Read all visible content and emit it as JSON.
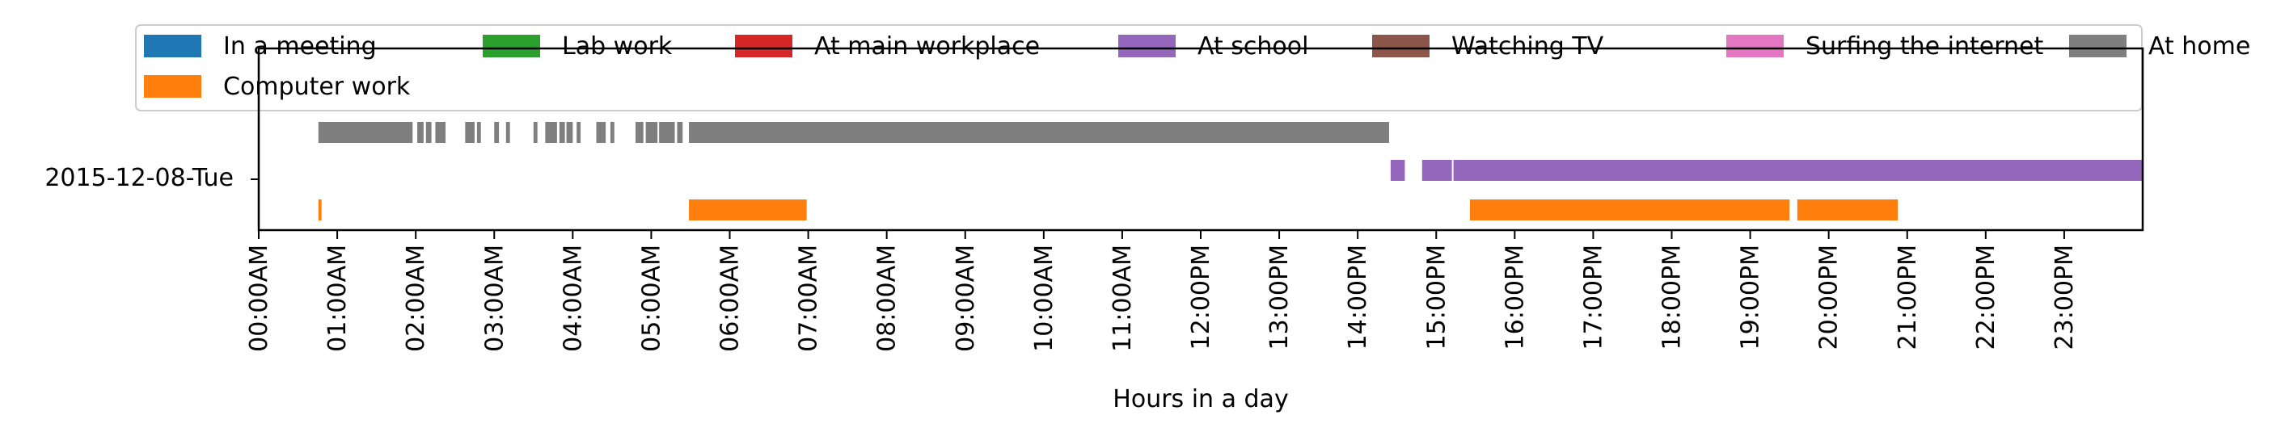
{
  "chart_data": {
    "type": "timeline",
    "title": "",
    "xlabel": "Hours in a day",
    "ylabel": "",
    "xlim": [
      0,
      24
    ],
    "y_category": "2015-12-08-Tue",
    "x_ticks": [
      "00:00AM",
      "01:00AM",
      "02:00AM",
      "03:00AM",
      "04:00AM",
      "05:00AM",
      "06:00AM",
      "07:00AM",
      "08:00AM",
      "09:00AM",
      "10:00AM",
      "11:00AM",
      "12:00PM",
      "13:00PM",
      "14:00PM",
      "15:00PM",
      "16:00PM",
      "17:00PM",
      "18:00PM",
      "19:00PM",
      "20:00PM",
      "21:00PM",
      "22:00PM",
      "23:00PM"
    ],
    "grid": false,
    "legend_position": "top",
    "series": [
      {
        "name": "In a meeting",
        "color": "#1f77b4",
        "row": "middle",
        "intervals": []
      },
      {
        "name": "Computer work",
        "color": "#ff7f0e",
        "row": "bottom",
        "intervals": [
          [
            0.76,
            0.8
          ],
          [
            5.48,
            6.98
          ],
          [
            15.43,
            19.5
          ],
          [
            19.6,
            20.88
          ]
        ]
      },
      {
        "name": "Lab work",
        "color": "#2ca02c",
        "row": "middle",
        "intervals": []
      },
      {
        "name": "At main workplace",
        "color": "#d62728",
        "row": "middle",
        "intervals": []
      },
      {
        "name": "At school",
        "color": "#9467bd",
        "row": "middle",
        "intervals": [
          [
            14.42,
            14.6
          ],
          [
            14.82,
            15.2
          ],
          [
            15.22,
            24.0
          ]
        ]
      },
      {
        "name": "Watching TV",
        "color": "#8c564b",
        "row": "middle",
        "intervals": []
      },
      {
        "name": "Surfing the internet",
        "color": "#e377c2",
        "row": "middle",
        "intervals": []
      },
      {
        "name": "At home",
        "color": "#7f7f7f",
        "row": "top",
        "intervals": [
          [
            0.76,
            1.96
          ],
          [
            2.02,
            2.1
          ],
          [
            2.13,
            2.2
          ],
          [
            2.25,
            2.38
          ],
          [
            2.63,
            2.75
          ],
          [
            2.78,
            2.83
          ],
          [
            3.0,
            3.06
          ],
          [
            3.15,
            3.2
          ],
          [
            3.5,
            3.55
          ],
          [
            3.65,
            3.8
          ],
          [
            3.83,
            3.9
          ],
          [
            3.92,
            4.0
          ],
          [
            4.05,
            4.1
          ],
          [
            4.3,
            4.42
          ],
          [
            4.48,
            4.53
          ],
          [
            4.8,
            4.9
          ],
          [
            4.93,
            5.08
          ],
          [
            5.1,
            5.3
          ],
          [
            5.33,
            5.4
          ],
          [
            5.48,
            14.4
          ]
        ]
      }
    ]
  }
}
